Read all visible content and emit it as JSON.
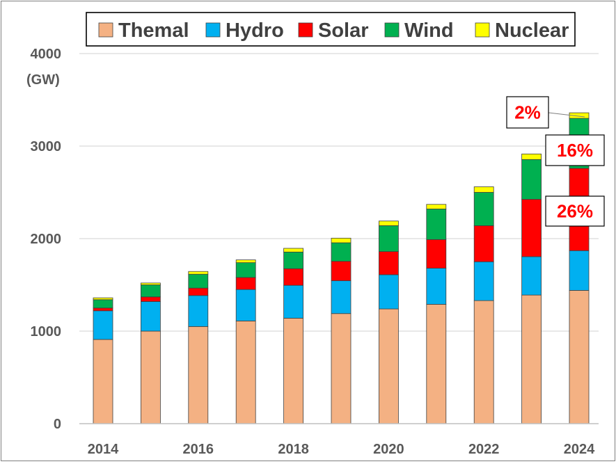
{
  "chart_data": {
    "type": "bar",
    "stacked": true,
    "unit_label": "(GW)",
    "categories": [
      "2014",
      "2015",
      "2016",
      "2017",
      "2018",
      "2019",
      "2020",
      "2021",
      "2022",
      "2023",
      "2024"
    ],
    "x_tick_labels": [
      "2014",
      "",
      "2016",
      "",
      "2018",
      "",
      "2020",
      "",
      "2022",
      "",
      "2024"
    ],
    "y_ticks": [
      0,
      1000,
      2000,
      3000,
      4000
    ],
    "ylim": [
      0,
      4000
    ],
    "grid": true,
    "legend_position": "top",
    "series": [
      {
        "name": "Themal",
        "color": "#f4b183",
        "values": [
          910,
          1000,
          1050,
          1110,
          1140,
          1190,
          1240,
          1290,
          1330,
          1390,
          1440
        ]
      },
      {
        "name": "Hydro",
        "color": "#00b0f0",
        "values": [
          310,
          320,
          335,
          340,
          355,
          355,
          370,
          390,
          420,
          415,
          430
        ]
      },
      {
        "name": "Solar",
        "color": "#ff0000",
        "values": [
          30,
          50,
          80,
          130,
          180,
          210,
          250,
          310,
          390,
          620,
          890
        ]
      },
      {
        "name": "Wind",
        "color": "#00b050",
        "values": [
          90,
          130,
          150,
          160,
          180,
          200,
          280,
          330,
          360,
          430,
          540
        ]
      },
      {
        "name": "Nuclear",
        "color": "#ffff00",
        "values": [
          20,
          20,
          30,
          30,
          40,
          50,
          50,
          50,
          60,
          60,
          60
        ]
      }
    ],
    "annotations": [
      {
        "text": "2%",
        "series": "Nuclear",
        "category": "2024"
      },
      {
        "text": "16%",
        "series": "Wind",
        "category": "2024"
      },
      {
        "text": "26%",
        "series": "Solar",
        "category": "2024"
      }
    ]
  }
}
